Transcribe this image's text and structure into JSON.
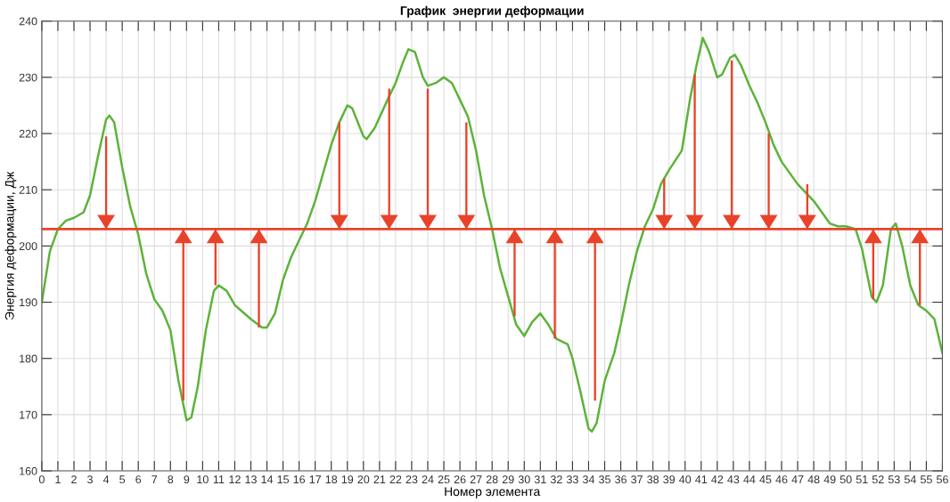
{
  "chart_data": {
    "type": "line",
    "title": "График  энергии деформации",
    "xlabel": "Номер элемента",
    "ylabel": "Энергия деформации, Дж",
    "xlim": [
      0,
      56
    ],
    "xticks": [
      0,
      1,
      2,
      3,
      4,
      5,
      6,
      7,
      8,
      9,
      10,
      11,
      12,
      13,
      14,
      15,
      16,
      17,
      18,
      19,
      20,
      21,
      22,
      23,
      24,
      25,
      26,
      27,
      28,
      29,
      30,
      31,
      32,
      33,
      34,
      35,
      36,
      37,
      38,
      39,
      40,
      41,
      42,
      43,
      44,
      45,
      46,
      47,
      48,
      49,
      50,
      51,
      52,
      53,
      54,
      55,
      56
    ],
    "ylim": [
      160,
      240
    ],
    "yticks": [
      160,
      170,
      180,
      190,
      200,
      210,
      220,
      230,
      240
    ],
    "grid": true,
    "legend": false,
    "marker": "none",
    "line_style": "solid",
    "ref_lines": [
      {
        "axis": "y",
        "value": 203,
        "color": "#e8432a",
        "line_style": "solid"
      }
    ],
    "series": [
      {
        "color": "#5db33a",
        "x": [
          0,
          0.5,
          1,
          1.5,
          2,
          2.6,
          3,
          3.5,
          4,
          4.2,
          4.5,
          5,
          5.5,
          6,
          6.5,
          7,
          7.5,
          8,
          8.5,
          9,
          9.3,
          9.7,
          10.2,
          10.7,
          11,
          11.5,
          12,
          13,
          13.7,
          14,
          14.5,
          15,
          15.5,
          16,
          16.5,
          17,
          17.5,
          18,
          18.5,
          19,
          19.3,
          20,
          20.2,
          20.7,
          21.5,
          22,
          22.5,
          22.8,
          23.2,
          23.7,
          24,
          24.5,
          25,
          25.5,
          26,
          26.5,
          27,
          27.5,
          28,
          28.5,
          29,
          29.5,
          30,
          30.5,
          31,
          31.5,
          32,
          32.7,
          33,
          33.5,
          34,
          34.2,
          34.5,
          35,
          35.6,
          36,
          36.5,
          37,
          37.5,
          38,
          38.5,
          39,
          39.8,
          40.3,
          40.7,
          41.1,
          41.5,
          42,
          42.3,
          42.8,
          43.1,
          43.5,
          44,
          44.5,
          45,
          45.5,
          46,
          47,
          48,
          49,
          49.5,
          50,
          50.6,
          51,
          51.6,
          51.9,
          52.3,
          52.8,
          53.1,
          53.5,
          54,
          54.5,
          55,
          55.5,
          56
        ],
        "values": [
          190,
          199,
          203,
          204.5,
          205,
          206,
          209,
          216,
          222.5,
          223.2,
          222,
          214,
          207,
          202,
          195,
          190.5,
          188.5,
          185,
          176,
          169,
          169.5,
          175,
          185,
          192,
          193,
          192,
          189.5,
          187,
          185.5,
          185.5,
          188,
          194,
          198,
          201,
          204,
          208,
          213,
          218,
          222,
          225,
          224.5,
          219.5,
          219,
          221,
          226,
          229,
          233,
          235,
          234.5,
          230,
          228.5,
          229,
          230,
          229,
          226,
          223,
          217,
          209,
          203,
          196,
          191,
          186,
          184,
          186.5,
          188,
          186,
          183.5,
          182.5,
          180,
          174,
          167.5,
          167,
          168.5,
          176,
          181,
          186,
          193,
          199,
          203.5,
          206.5,
          211,
          213.5,
          217,
          226,
          232,
          237,
          234.5,
          230,
          230.5,
          233.5,
          234,
          232,
          228.5,
          225.5,
          222,
          218,
          215,
          211,
          208,
          204,
          203.5,
          203.5,
          203,
          199.5,
          191,
          190,
          193,
          203,
          204,
          200,
          193,
          189.5,
          188.5,
          187,
          181
        ]
      },
      {
        "type": "bar",
        "color": "#e8432a",
        "x": [
          4,
          8.8,
          10.8,
          13.5,
          18.5,
          21.6,
          24,
          26.4,
          29.4,
          31.9,
          34.4,
          38.7,
          40.6,
          42.9,
          45.2,
          47.6,
          51.7,
          54.6
        ],
        "base": [
          219.5,
          172.5,
          193,
          185.5,
          222,
          228,
          228,
          222,
          187.5,
          183.5,
          172.5,
          212,
          230.5,
          233,
          220,
          211,
          190.5,
          189.5
        ],
        "values": [
          -16.5,
          30.5,
          10,
          17.5,
          -19,
          -25,
          -25,
          -19,
          15.5,
          19.5,
          30.5,
          -9,
          -27.5,
          -30,
          -17,
          -8,
          12.5,
          13.5
        ]
      }
    ]
  }
}
